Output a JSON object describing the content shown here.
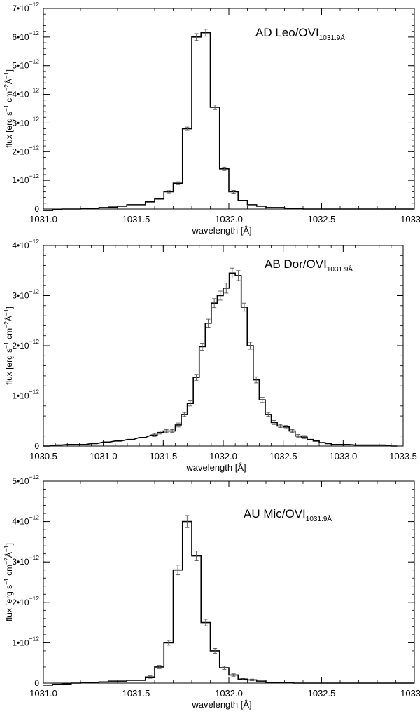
{
  "figure": {
    "description_free": true
  },
  "chart_data": [
    {
      "type": "line",
      "step": true,
      "title": "",
      "annotation_main": "AD Leo/OVI",
      "annotation_sub": "1031.9Å",
      "xlabel": "wavelength [Å]",
      "ylabel_parts": [
        "flux [erg s",
        "−1",
        " cm",
        "−2",
        "Å",
        "−1",
        "]"
      ],
      "xlim": [
        1031.0,
        1033.0
      ],
      "ylim": [
        0,
        7e-12
      ],
      "xticks": [
        1031.0,
        1031.5,
        1032.0,
        1032.5,
        1033.0
      ],
      "xtick_labels": [
        "1031.0",
        "1031.5",
        "1032.0",
        "1032.5",
        "1033.0"
      ],
      "yticks": [
        0,
        1e-12,
        2e-12,
        3e-12,
        4e-12,
        5e-12,
        6e-12,
        7e-12
      ],
      "ytick_labels": [
        {
          "mant": "0",
          "exp": ""
        },
        {
          "mant": "1•10",
          "exp": "−12"
        },
        {
          "mant": "2•10",
          "exp": "−12"
        },
        {
          "mant": "3•10",
          "exp": "−12"
        },
        {
          "mant": "4•10",
          "exp": "−12"
        },
        {
          "mant": "5•10",
          "exp": "−12"
        },
        {
          "mant": "6•10",
          "exp": "−12"
        },
        {
          "mant": "7•10",
          "exp": "−12"
        }
      ],
      "bin_width": 0.05,
      "x": [
        1031.0,
        1031.05,
        1031.1,
        1031.15,
        1031.2,
        1031.25,
        1031.3,
        1031.35,
        1031.4,
        1031.45,
        1031.5,
        1031.55,
        1031.6,
        1031.65,
        1031.7,
        1031.75,
        1031.8,
        1031.85,
        1031.9,
        1031.95,
        1032.0,
        1032.05,
        1032.1,
        1032.15,
        1032.2,
        1032.25,
        1032.3,
        1032.35,
        1032.4,
        1032.45,
        1032.5,
        1032.55,
        1032.6,
        1032.65,
        1032.7,
        1032.75,
        1032.8,
        1032.85,
        1032.9,
        1032.95
      ],
      "values": [
        -5e-14,
        -3e-14,
        0.0,
        0.0,
        2e-14,
        3e-14,
        5e-14,
        7e-14,
        1e-13,
        1.5e-13,
        1.5e-13,
        2.5e-13,
        3.5e-13,
        6e-13,
        9e-13,
        2.8e-12,
        6e-12,
        6.15e-12,
        3.55e-12,
        1.4e-12,
        6e-13,
        3e-13,
        1.5e-13,
        1e-13,
        5e-14,
        5e-14,
        2e-14,
        2e-14,
        0.0,
        0.0,
        0.0,
        0.0,
        0.0,
        0.0,
        0.0,
        0.0,
        0.0,
        0.0,
        0.0,
        0.0
      ],
      "errors": [
        0,
        0,
        0,
        0,
        0,
        0,
        0,
        0,
        0,
        0,
        0,
        0,
        0,
        4e-14,
        5e-14,
        6e-14,
        1.2e-13,
        1.2e-13,
        8e-14,
        6e-14,
        5e-14,
        0,
        0,
        0,
        0,
        0,
        0,
        0,
        0,
        0,
        0,
        0,
        0,
        0,
        0,
        0,
        0,
        0,
        0,
        0
      ]
    },
    {
      "type": "line",
      "step": true,
      "title": "",
      "annotation_main": "AB Dor/OVI",
      "annotation_sub": "1031.9Å",
      "xlabel": "wavelength [Å]",
      "ylabel_parts": [
        "flux [erg s",
        "−1",
        " cm",
        "−2",
        "Å",
        "−1",
        "]"
      ],
      "xlim": [
        1030.5,
        1033.5
      ],
      "ylim": [
        0,
        4e-12
      ],
      "xticks": [
        1030.5,
        1031.0,
        1031.5,
        1032.0,
        1032.5,
        1033.0,
        1033.5
      ],
      "xtick_labels": [
        "1030.5",
        "1031.0",
        "1031.5",
        "1032.0",
        "1032.5",
        "1033.0",
        "1033.5"
      ],
      "yticks": [
        0,
        1e-12,
        2e-12,
        3e-12,
        4e-12
      ],
      "ytick_labels": [
        {
          "mant": "0",
          "exp": ""
        },
        {
          "mant": "1•10",
          "exp": "−12"
        },
        {
          "mant": "2•10",
          "exp": "−12"
        },
        {
          "mant": "3•10",
          "exp": "−12"
        },
        {
          "mant": "4•10",
          "exp": "−12"
        }
      ],
      "bin_width": 0.05,
      "x": [
        1030.5,
        1030.6,
        1030.7,
        1030.8,
        1030.9,
        1031.0,
        1031.1,
        1031.2,
        1031.3,
        1031.4,
        1031.45,
        1031.5,
        1031.55,
        1031.6,
        1031.65,
        1031.7,
        1031.75,
        1031.8,
        1031.85,
        1031.9,
        1031.95,
        1032.0,
        1032.05,
        1032.1,
        1032.15,
        1032.2,
        1032.25,
        1032.3,
        1032.35,
        1032.4,
        1032.45,
        1032.5,
        1032.55,
        1032.6,
        1032.65,
        1032.7,
        1032.75,
        1032.8,
        1032.85,
        1032.9,
        1033.0,
        1033.1,
        1033.2,
        1033.3,
        1033.4
      ],
      "values": [
        0.0,
        2e-14,
        3e-14,
        3e-14,
        5e-14,
        8e-14,
        1e-13,
        1.3e-13,
        1.7e-13,
        2.2e-13,
        2.7e-13,
        3e-13,
        3e-13,
        4.2e-13,
        6.3e-13,
        8.5e-13,
        1.37e-12,
        1.98e-12,
        2.45e-12,
        2.85e-12,
        3e-12,
        3.15e-12,
        3.45e-12,
        3.4e-12,
        2.77e-12,
        2e-12,
        1.32e-12,
        9.2e-13,
        6.3e-13,
        4.7e-13,
        4e-13,
        3.8e-13,
        3e-13,
        2e-13,
        1.8e-13,
        1.3e-13,
        1e-13,
        7e-14,
        5e-14,
        3e-14,
        3e-14,
        2e-14,
        2e-14,
        2e-14,
        0.0
      ],
      "errors": [
        0,
        0,
        0,
        0,
        0,
        0,
        0,
        0,
        0,
        3e-14,
        3e-14,
        3e-14,
        3e-14,
        4e-14,
        4e-14,
        5e-14,
        6e-14,
        7e-14,
        8e-14,
        9e-14,
        9e-14,
        1e-13,
        1e-13,
        1e-13,
        8e-14,
        7e-14,
        6e-14,
        5e-14,
        4e-14,
        4e-14,
        3e-14,
        3e-14,
        3e-14,
        3e-14,
        3e-14,
        0,
        0,
        0,
        0,
        0,
        0,
        0,
        0,
        0,
        0
      ]
    },
    {
      "type": "line",
      "step": true,
      "title": "",
      "annotation_main": "AU Mic/OVI",
      "annotation_sub": "1031.9Å",
      "xlabel": "wavelength [Å]",
      "ylabel_parts": [
        "flux [erg s",
        "−1",
        " cm",
        "−2",
        "Å",
        "−1",
        "]"
      ],
      "xlim": [
        1031.0,
        1033.0
      ],
      "ylim": [
        0,
        5e-12
      ],
      "xticks": [
        1031.0,
        1031.5,
        1032.0,
        1032.5,
        1033.0
      ],
      "xtick_labels": [
        "1031.0",
        "1031.5",
        "1032.0",
        "1032.5",
        "1033.0"
      ],
      "yticks": [
        0,
        1e-12,
        2e-12,
        3e-12,
        4e-12,
        5e-12
      ],
      "ytick_labels": [
        {
          "mant": "0",
          "exp": ""
        },
        {
          "mant": "1•10",
          "exp": "−12"
        },
        {
          "mant": "2•10",
          "exp": "−12"
        },
        {
          "mant": "3•10",
          "exp": "−12"
        },
        {
          "mant": "4•10",
          "exp": "−12"
        },
        {
          "mant": "5•10",
          "exp": "−12"
        }
      ],
      "bin_width": 0.05,
      "x": [
        1031.0,
        1031.05,
        1031.1,
        1031.15,
        1031.2,
        1031.25,
        1031.3,
        1031.35,
        1031.4,
        1031.45,
        1031.5,
        1031.55,
        1031.6,
        1031.65,
        1031.7,
        1031.75,
        1031.8,
        1031.85,
        1031.9,
        1031.95,
        1032.0,
        1032.05,
        1032.1,
        1032.15,
        1032.2,
        1032.25,
        1032.3,
        1032.35,
        1032.4,
        1032.45,
        1032.5,
        1032.55,
        1032.6,
        1032.65,
        1032.7,
        1032.75,
        1032.8,
        1032.85,
        1032.9,
        1032.95
      ],
      "values": [
        -5e-14,
        -3e-14,
        -2e-14,
        0.0,
        2e-14,
        2e-14,
        3e-14,
        5e-14,
        5e-14,
        7e-14,
        7e-14,
        1.5e-13,
        4e-13,
        1e-12,
        2.8e-12,
        4e-12,
        3.15e-12,
        1.5e-12,
        8e-13,
        3.8e-13,
        2e-13,
        1e-13,
        8e-14,
        5e-14,
        2e-14,
        2e-14,
        2e-14,
        0.0,
        0.0,
        0.0,
        0.0,
        0.0,
        0.0,
        0.0,
        0.0,
        0.0,
        0.0,
        0.0,
        0.0,
        0.0
      ],
      "errors": [
        0,
        0,
        0,
        0,
        0,
        0,
        0,
        0,
        0,
        0,
        0,
        3e-14,
        4e-14,
        6e-14,
        1.2e-13,
        1.5e-13,
        1.2e-13,
        8e-14,
        6e-14,
        4e-14,
        3e-14,
        2e-14,
        2e-14,
        0,
        0,
        0,
        0,
        0,
        0,
        0,
        0,
        0,
        0,
        0,
        0,
        0,
        0,
        0,
        0,
        0
      ]
    }
  ]
}
